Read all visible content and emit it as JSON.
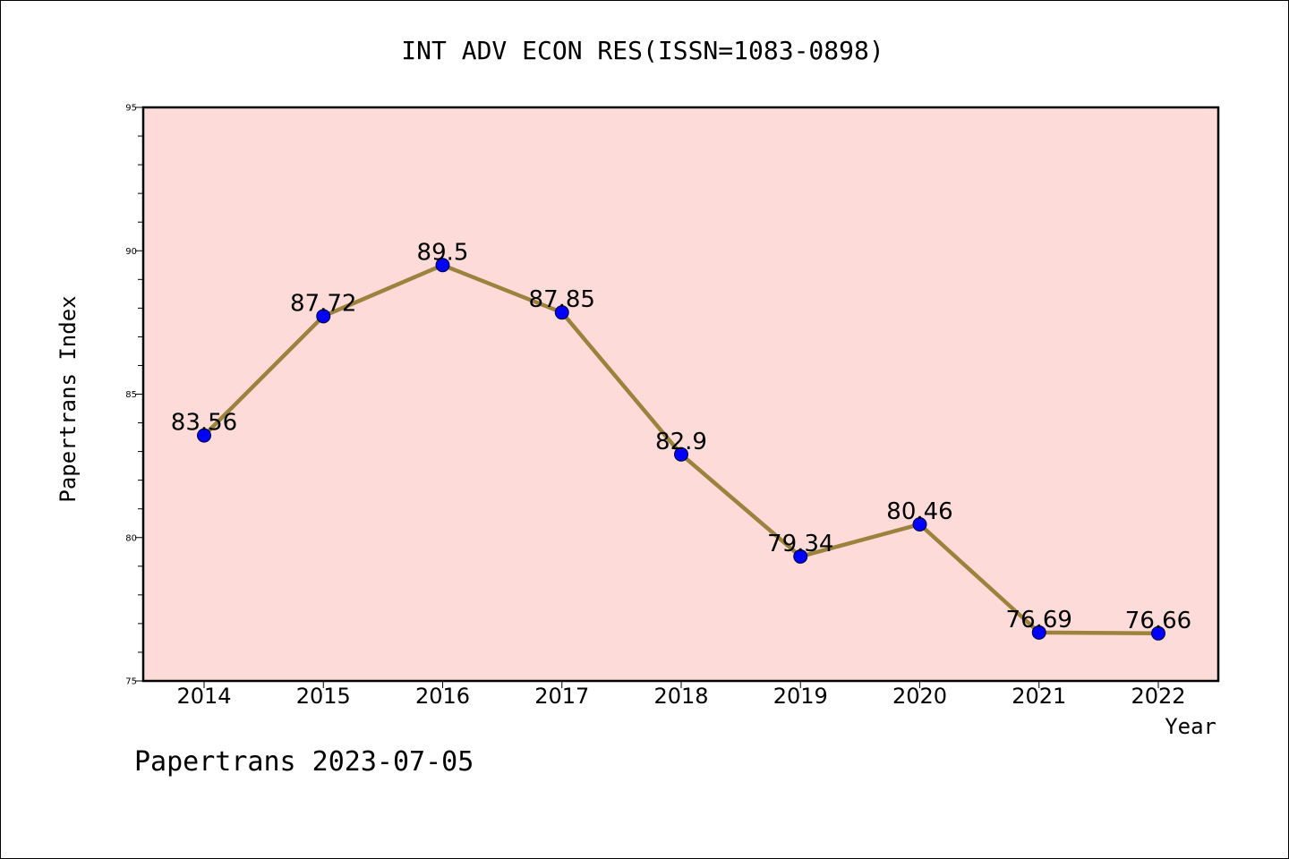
{
  "chart_data": {
    "type": "line",
    "title": "INT ADV ECON RES(ISSN=1083-0898)",
    "xlabel": "Year",
    "ylabel": "Papertrans Index",
    "categories": [
      "2014",
      "2015",
      "2016",
      "2017",
      "2018",
      "2019",
      "2020",
      "2021",
      "2022"
    ],
    "series": [
      {
        "values": [
          83.56,
          87.72,
          89.5,
          87.85,
          82.9,
          79.34,
          80.46,
          76.69,
          76.66
        ],
        "labels": [
          "83.56",
          "87.72",
          "89.5",
          "87.85",
          "82.9",
          "79.34",
          "80.46",
          "76.69",
          "76.66"
        ]
      }
    ],
    "ylim": [
      75,
      95
    ],
    "yticks": [
      "75",
      "80",
      "85",
      "90",
      "95"
    ],
    "grid": false,
    "legend": "none",
    "colors": {
      "plot_background": "#fddbd8",
      "line": "#9b833d",
      "marker": "#0000ff"
    }
  },
  "footer": "Papertrans 2023-07-05"
}
